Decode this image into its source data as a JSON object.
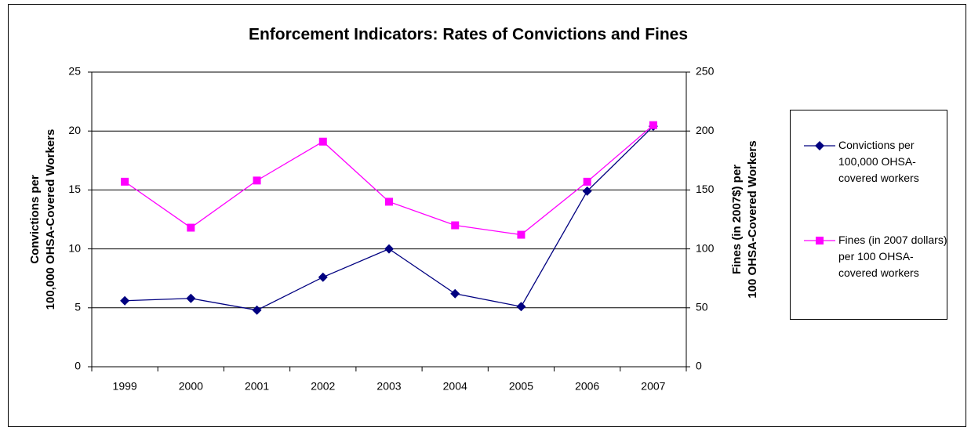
{
  "chart_data": {
    "type": "line",
    "title": "Enforcement Indicators: Rates of Convictions and Fines",
    "ylabel": [
      "Convictions per",
      "100,000 OHSA-Covered Workers"
    ],
    "y2label": [
      "Fines (in 2007$) per",
      "100 OHSA-Covered Workers"
    ],
    "categories": [
      "1999",
      "2000",
      "2001",
      "2002",
      "2003",
      "2004",
      "2005",
      "2006",
      "2007"
    ],
    "ylim": [
      0,
      25
    ],
    "yticks": [
      0,
      5,
      10,
      15,
      20,
      25
    ],
    "y2lim": [
      0,
      250
    ],
    "y2ticks": [
      0,
      50,
      100,
      150,
      200,
      250
    ],
    "grid": true,
    "legend": "right",
    "series": [
      {
        "name": "Convictions per 100,000 OHSA-covered workers",
        "color": "#000080",
        "marker": "diamond",
        "values": [
          5.6,
          5.8,
          4.8,
          7.6,
          10.0,
          6.2,
          5.1,
          14.9,
          20.4
        ]
      },
      {
        "name": "Fines (in 2007 dollars) per 100 OHSA-covered workers",
        "color": "#ff00ff",
        "marker": "square",
        "axis": "y2",
        "values": [
          157,
          118,
          158,
          191,
          140,
          120,
          112,
          157,
          205
        ]
      }
    ]
  }
}
